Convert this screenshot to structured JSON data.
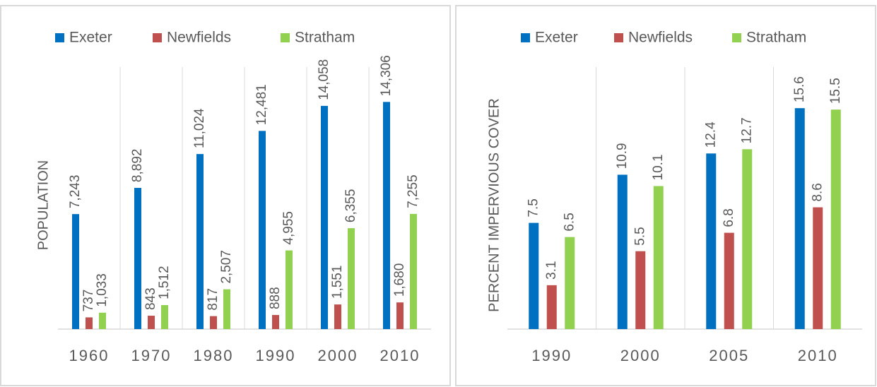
{
  "chart_data": [
    {
      "type": "bar",
      "ylabel": "POPULATION",
      "categories": [
        "1960",
        "1970",
        "1980",
        "1990",
        "2000",
        "2010"
      ],
      "ylim": [
        0,
        16500
      ],
      "grid": true,
      "legend": "top",
      "series": [
        {
          "name": "Exeter",
          "color": "#0070c0",
          "values": [
            7243,
            8892,
            11024,
            12481,
            14058,
            14306
          ],
          "value_labels": [
            "7,243",
            "8,892",
            "11,024",
            "12,481",
            "14,058",
            "14,306"
          ]
        },
        {
          "name": "Newfields",
          "color": "#c0504d",
          "values": [
            737,
            843,
            817,
            888,
            1551,
            1680
          ],
          "value_labels": [
            "737",
            "843",
            "817",
            "888",
            "1,551",
            "1,680"
          ]
        },
        {
          "name": "Stratham",
          "color": "#92d050",
          "values": [
            1033,
            1512,
            2507,
            4955,
            6355,
            7255
          ],
          "value_labels": [
            "1,033",
            "1,512",
            "2,507",
            "4,955",
            "6,355",
            "7,255"
          ]
        }
      ]
    },
    {
      "type": "bar",
      "ylabel": "PERCENT IMPERVIOUS COVER",
      "categories": [
        "1990",
        "2000",
        "2005",
        "2010"
      ],
      "ylim": [
        0,
        18.5
      ],
      "grid": true,
      "legend": "top",
      "series": [
        {
          "name": "Exeter",
          "color": "#0070c0",
          "values": [
            7.5,
            10.9,
            12.4,
            15.6
          ]
        },
        {
          "name": "Newfields",
          "color": "#c0504d",
          "values": [
            3.1,
            5.5,
            6.8,
            8.6
          ]
        },
        {
          "name": "Stratham",
          "color": "#92d050",
          "values": [
            6.5,
            10.1,
            12.7,
            15.5
          ]
        }
      ]
    }
  ]
}
